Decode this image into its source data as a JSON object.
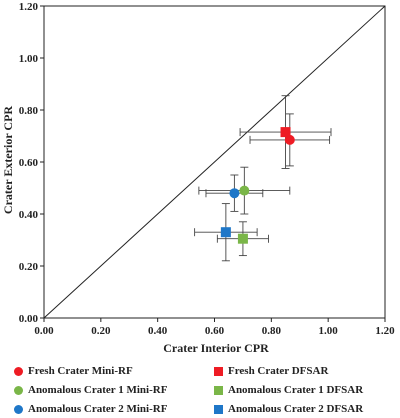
{
  "chart_data": {
    "type": "scatter",
    "xlabel": "Crater Interior CPR",
    "ylabel": "Crater Exterior CPR",
    "xlim": [
      0,
      1.2
    ],
    "ylim": [
      0,
      1.2
    ],
    "x_ticks": [
      "0.00",
      "0.20",
      "0.40",
      "0.60",
      "0.80",
      "1.00",
      "1.20"
    ],
    "y_ticks": [
      "0.00",
      "0.20",
      "0.40",
      "0.60",
      "0.80",
      "1.00",
      "1.20"
    ],
    "grid": false,
    "reference_line": "y = x",
    "series": [
      {
        "name": "Fresh Crater Mini-RF",
        "marker": "circle",
        "color": "#ee1c24",
        "x": 0.865,
        "y": 0.685,
        "xerr": 0.14,
        "yerr": 0.1
      },
      {
        "name": "Fresh Crater DFSAR",
        "marker": "square",
        "color": "#ee1c24",
        "x": 0.85,
        "y": 0.715,
        "xerr": 0.16,
        "yerr": 0.14
      },
      {
        "name": "Anomalous Crater 1 Mini-RF",
        "marker": "circle",
        "color": "#7ab648",
        "x": 0.705,
        "y": 0.49,
        "xerr": 0.16,
        "yerr": 0.09
      },
      {
        "name": "Anomalous Crater 1 DFSAR",
        "marker": "square",
        "color": "#7ab648",
        "x": 0.7,
        "y": 0.305,
        "xerr": 0.09,
        "yerr": 0.065
      },
      {
        "name": "Anomalous Crater 2 Mini-RF",
        "marker": "circle",
        "color": "#1f77c8",
        "x": 0.67,
        "y": 0.48,
        "xerr": 0.1,
        "yerr": 0.07
      },
      {
        "name": "Anomalous Crater 2 DFSAR",
        "marker": "square",
        "color": "#1f77c8",
        "x": 0.64,
        "y": 0.33,
        "xerr": 0.11,
        "yerr": 0.11
      }
    ],
    "legend_order": [
      0,
      1,
      2,
      3,
      4,
      5
    ]
  }
}
